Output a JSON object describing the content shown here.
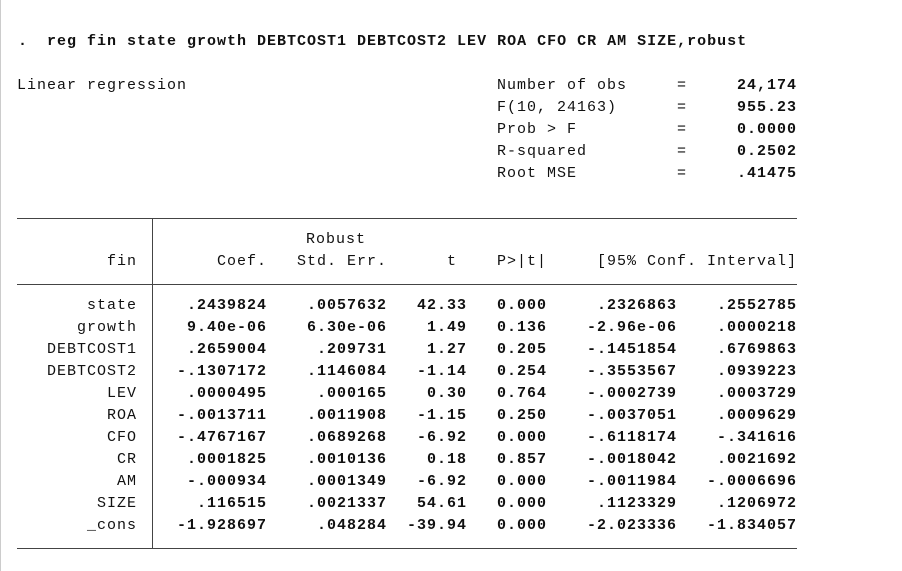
{
  "prompt": ".",
  "command": "reg fin state growth DEBTCOST1 DEBTCOST2 LEV ROA CFO CR AM SIZE,robust",
  "model_title": "Linear regression",
  "stats": [
    {
      "label": "Number of obs",
      "eq": "=",
      "value": "24,174"
    },
    {
      "label": "F(10, 24163)",
      "eq": "=",
      "value": "955.23"
    },
    {
      "label": "Prob > F",
      "eq": "=",
      "value": "0.0000"
    },
    {
      "label": "R-squared",
      "eq": "=",
      "value": "0.2502"
    },
    {
      "label": "Root MSE",
      "eq": "=",
      "value": ".41475"
    }
  ],
  "table": {
    "robust_label": "Robust",
    "columns": [
      "fin",
      "Coef.",
      "Std. Err.",
      "t",
      "P>|t|",
      "[95% Conf. Interval]"
    ],
    "rows": [
      [
        "state",
        ".2439824",
        ".0057632",
        "42.33",
        "0.000",
        ".2326863",
        ".2552785"
      ],
      [
        "growth",
        "9.40e-06",
        "6.30e-06",
        "1.49",
        "0.136",
        "-2.96e-06",
        ".0000218"
      ],
      [
        "DEBTCOST1",
        ".2659004",
        ".209731",
        "1.27",
        "0.205",
        "-.1451854",
        ".6769863"
      ],
      [
        "DEBTCOST2",
        "-.1307172",
        ".1146084",
        "-1.14",
        "0.254",
        "-.3553567",
        ".0939223"
      ],
      [
        "LEV",
        ".0000495",
        ".000165",
        "0.30",
        "0.764",
        "-.0002739",
        ".0003729"
      ],
      [
        "ROA",
        "-.0013711",
        ".0011908",
        "-1.15",
        "0.250",
        "-.0037051",
        ".0009629"
      ],
      [
        "CFO",
        "-.4767167",
        ".0689268",
        "-6.92",
        "0.000",
        "-.6118174",
        "-.341616"
      ],
      [
        "CR",
        ".0001825",
        ".0010136",
        "0.18",
        "0.857",
        "-.0018042",
        ".0021692"
      ],
      [
        "AM",
        "-.000934",
        ".0001349",
        "-6.92",
        "0.000",
        "-.0011984",
        "-.0006696"
      ],
      [
        "SIZE",
        ".116515",
        ".0021337",
        "54.61",
        "0.000",
        ".1123329",
        ".1206972"
      ],
      [
        "_cons",
        "-1.928697",
        ".048284",
        "-39.94",
        "0.000",
        "-2.023336",
        "-1.834057"
      ]
    ]
  }
}
